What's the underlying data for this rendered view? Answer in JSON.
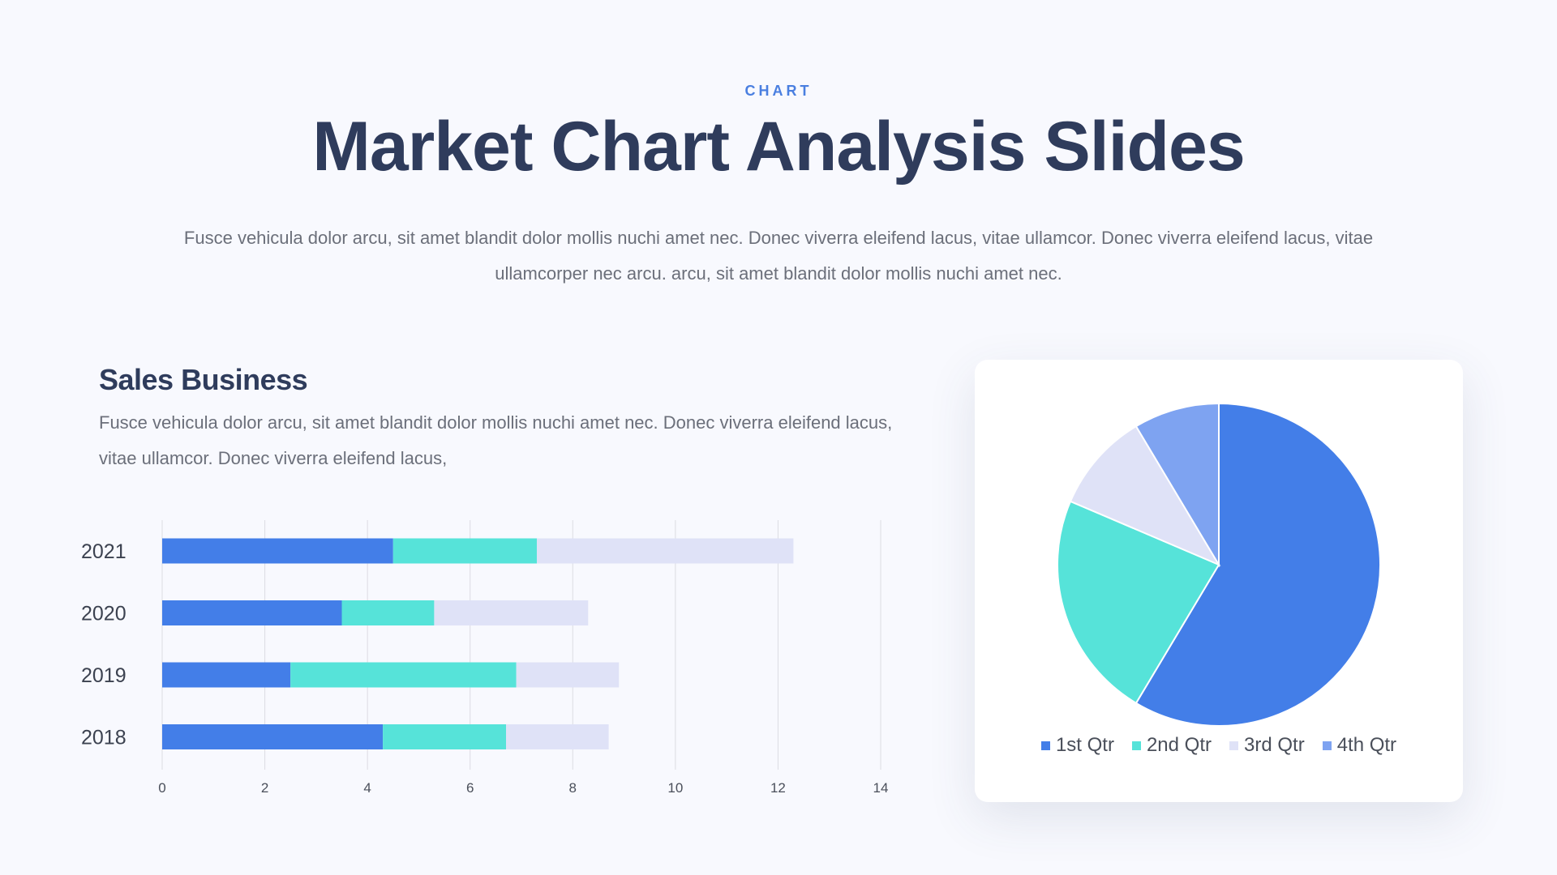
{
  "header": {
    "eyebrow": "CHART",
    "title": "Market Chart Analysis Slides",
    "intro": "Fusce vehicula dolor arcu, sit amet blandit dolor mollis nuchi amet  nec. Donec viverra eleifend lacus, vitae ullamcor. Donec viverra eleifend lacus, vitae ullamcorper nec arcu. arcu, sit amet blandit dolor mollis nuchi amet  nec."
  },
  "section": {
    "title": "Sales Business",
    "text": "Fusce vehicula dolor arcu, sit amet blandit dolor mollis nuchi amet  nec. Donec viverra eleifend lacus, vitae ullamcor. Donec viverra eleifend lacus,"
  },
  "chart_data": [
    {
      "type": "bar",
      "orientation": "horizontal",
      "stacked": true,
      "categories": [
        "2021",
        "2020",
        "2019",
        "2018"
      ],
      "series": [
        {
          "values": [
            4.5,
            3.5,
            2.5,
            4.3
          ],
          "color": "#437ee8"
        },
        {
          "values": [
            2.8,
            1.8,
            4.4,
            2.4
          ],
          "color": "#56e3d9"
        },
        {
          "values": [
            5.0,
            3.0,
            2.0,
            2.0
          ],
          "color": "#dfe2f7"
        }
      ],
      "xlim": [
        0,
        14
      ],
      "xticks": [
        "0",
        "2",
        "4",
        "6",
        "8",
        "10",
        "12",
        "14"
      ],
      "grid": true
    },
    {
      "type": "pie",
      "labels": [
        "1st Qtr",
        "2nd Qtr",
        "3rd Qtr",
        "4th Qtr"
      ],
      "values": [
        8.2,
        3.2,
        1.4,
        1.2
      ],
      "colors": [
        "#437ee8",
        "#56e3d9",
        "#dfe2f7",
        "#7ea3f1"
      ],
      "legend": "bottom"
    }
  ]
}
